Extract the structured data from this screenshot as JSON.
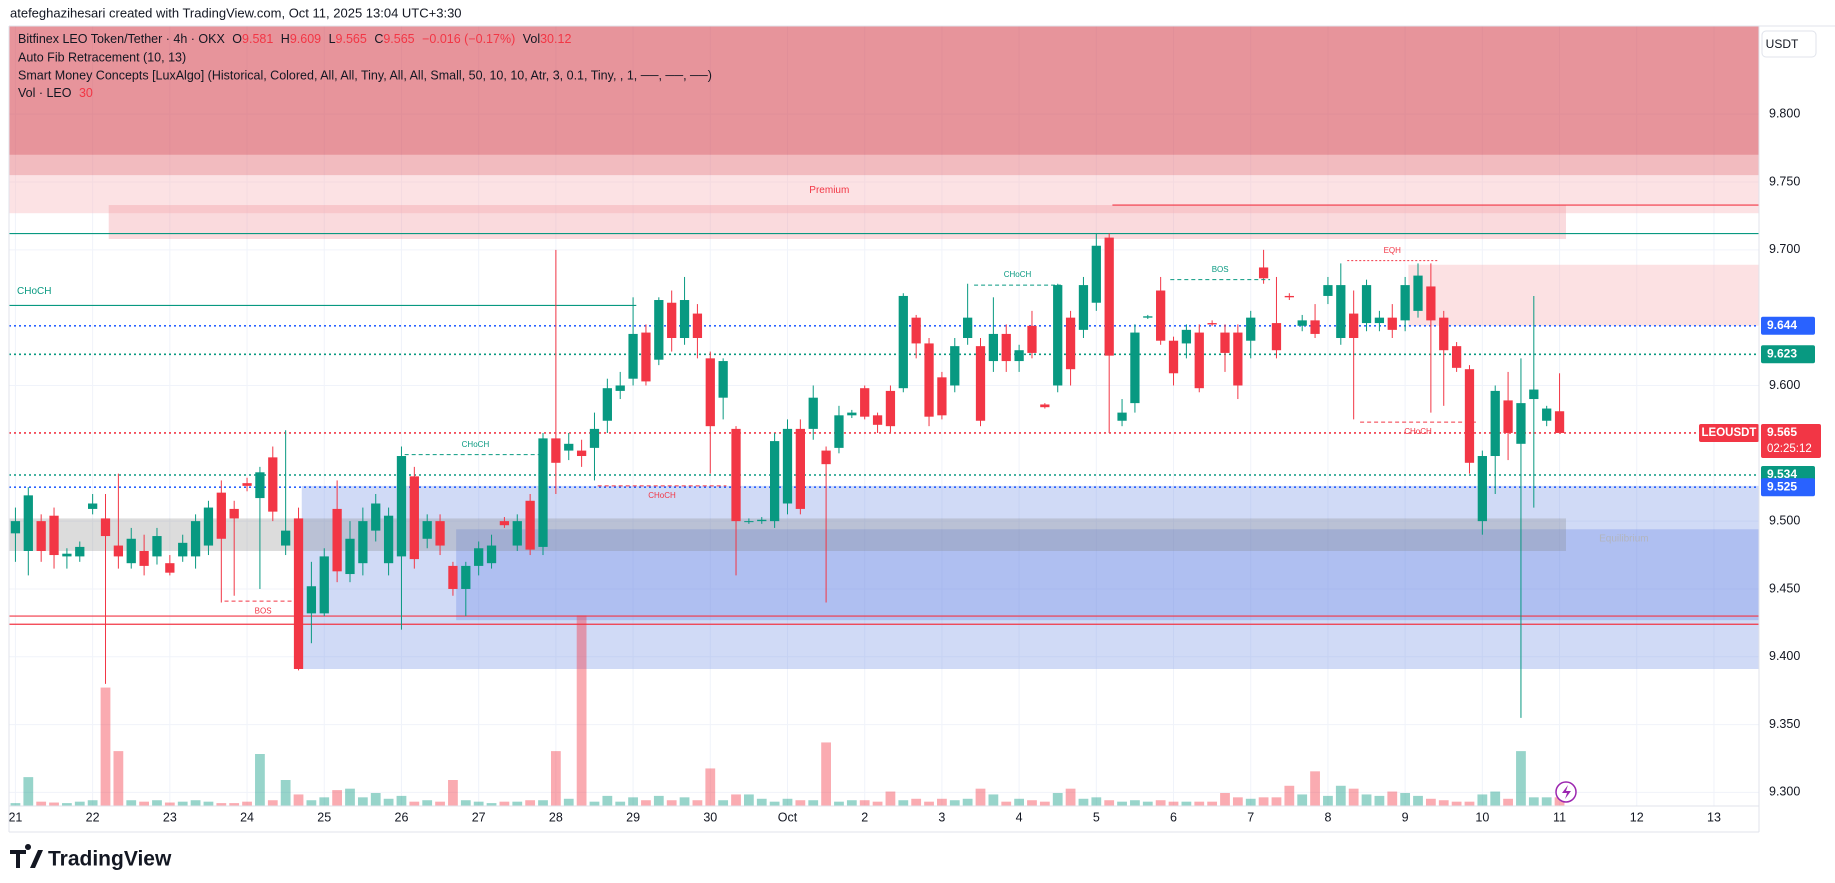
{
  "header": "atefeghazihesari created with TradingView.com, Oct 11, 2025 13:04 UTC+3:30",
  "footer": "TradingView",
  "legend": {
    "symbol": "Bitfinex LEO Token/Tether · 4h · OKX",
    "fields": [
      {
        "key": "O",
        "value": "9.581"
      },
      {
        "key": "H",
        "value": "9.609"
      },
      {
        "key": "L",
        "value": "9.565"
      },
      {
        "key": "C",
        "value": "9.565"
      }
    ],
    "change": "−0.016 (−0.17%)",
    "vol_key": "Vol",
    "vol_value": "30.12",
    "indicators": [
      "Auto Fib Retracement (10, 13)",
      "Smart Money Concepts [LuxAlgo] (Historical, Colored, All, All, Tiny, All, All, Small, 50, 10, 10, Atr, 3, 0.1, Tiny, , 1, ──, ──, ──)"
    ],
    "volume_key": "Vol · LEO",
    "volume_value": "30"
  },
  "chart_data": {
    "type": "candlestick",
    "currency": "USDT",
    "up_color": "#089981",
    "down_color": "#f23645",
    "grid": true,
    "xlim": [
      -2,
      542
    ],
    "ylim": [
      9.29,
      9.865
    ],
    "volume_ylim": [
      0,
      2700
    ],
    "xticks": [
      {
        "value": 0,
        "label": "21"
      },
      {
        "value": 24,
        "label": "22"
      },
      {
        "value": 48,
        "label": "23"
      },
      {
        "value": 72,
        "label": "24"
      },
      {
        "value": 96,
        "label": "25"
      },
      {
        "value": 120,
        "label": "26"
      },
      {
        "value": 144,
        "label": "27"
      },
      {
        "value": 168,
        "label": "28"
      },
      {
        "value": 192,
        "label": "29"
      },
      {
        "value": 216,
        "label": "30"
      },
      {
        "value": 240,
        "label": "Oct"
      },
      {
        "value": 264,
        "label": "2"
      },
      {
        "value": 288,
        "label": "3"
      },
      {
        "value": 312,
        "label": "4"
      },
      {
        "value": 336,
        "label": "5"
      },
      {
        "value": 360,
        "label": "6"
      },
      {
        "value": 384,
        "label": "7"
      },
      {
        "value": 408,
        "label": "8"
      },
      {
        "value": 432,
        "label": "9"
      },
      {
        "value": 456,
        "label": "10"
      },
      {
        "value": 480,
        "label": "11"
      },
      {
        "value": 504,
        "label": "12"
      },
      {
        "value": 528,
        "label": "13"
      }
    ],
    "yticks": [
      {
        "value": 9.3,
        "label": "9.300"
      },
      {
        "value": 9.35,
        "label": "9.350"
      },
      {
        "value": 9.4,
        "label": "9.400"
      },
      {
        "value": 9.45,
        "label": "9.450"
      },
      {
        "value": 9.5,
        "label": "9.500"
      },
      {
        "value": 9.6,
        "label": "9.600"
      },
      {
        "value": 9.7,
        "label": "9.700"
      },
      {
        "value": 9.75,
        "label": "9.750"
      },
      {
        "value": 9.8,
        "label": "9.800"
      }
    ],
    "x": [
      0,
      4,
      8,
      12,
      16,
      20,
      24,
      28,
      32,
      36,
      40,
      44,
      48,
      52,
      56,
      60,
      64,
      68,
      72,
      76,
      80,
      84,
      88,
      92,
      96,
      100,
      104,
      108,
      112,
      116,
      120,
      124,
      128,
      132,
      136,
      140,
      144,
      148,
      152,
      156,
      160,
      164,
      168,
      172,
      176,
      180,
      184,
      188,
      192,
      196,
      200,
      204,
      208,
      212,
      216,
      220,
      224,
      228,
      232,
      236,
      240,
      244,
      248,
      252,
      256,
      260,
      264,
      268,
      272,
      276,
      280,
      284,
      288,
      292,
      296,
      300,
      304,
      308,
      312,
      316,
      320,
      324,
      328,
      332,
      336,
      340,
      344,
      348,
      352,
      356,
      360,
      364,
      368,
      372,
      376,
      380,
      384,
      388,
      392,
      396,
      400,
      404,
      408,
      412,
      416,
      420,
      424,
      428,
      432,
      436,
      440,
      444,
      448,
      452,
      456,
      460,
      464,
      468,
      472,
      476,
      480
    ],
    "open": [
      9.491,
      9.478,
      9.5,
      9.504,
      9.474,
      9.474,
      9.509,
      9.502,
      9.482,
      9.469,
      9.478,
      9.474,
      9.469,
      9.474,
      9.474,
      9.482,
      9.521,
      9.509,
      9.528,
      9.517,
      9.547,
      9.482,
      9.502,
      9.432,
      9.432,
      9.509,
      9.461,
      9.469,
      9.493,
      9.469,
      9.474,
      9.533,
      9.487,
      9.5,
      9.467,
      9.45,
      9.467,
      9.469,
      9.5,
      9.482,
      9.515,
      9.481,
      9.561,
      9.552,
      9.552,
      9.554,
      9.574,
      9.596,
      9.605,
      9.639,
      9.619,
      9.661,
      9.635,
      9.653,
      9.62,
      9.591,
      9.568,
      9.5,
      9.5,
      9.5,
      9.513,
      9.568,
      9.568,
      9.552,
      9.554,
      9.578,
      9.598,
      9.578,
      9.596,
      9.598,
      9.65,
      9.631,
      9.606,
      9.6,
      9.635,
      9.629,
      9.618,
      9.638,
      9.618,
      9.644,
      9.586,
      9.6,
      9.65,
      9.641,
      9.661,
      9.709,
      9.574,
      9.587,
      9.65,
      9.67,
      9.633,
      9.631,
      9.639,
      9.646,
      9.639,
      9.639,
      9.633,
      9.687,
      9.646,
      9.666,
      9.644,
      9.648,
      9.666,
      9.635,
      9.653,
      9.646,
      9.646,
      9.65,
      9.648,
      9.655,
      9.673,
      9.65,
      9.629,
      9.612,
      9.5,
      9.548,
      9.589,
      9.557,
      9.59,
      9.574,
      9.581
    ],
    "high": [
      9.51,
      9.525,
      9.505,
      9.51,
      9.48,
      9.485,
      9.52,
      9.52,
      9.535,
      9.495,
      9.49,
      9.495,
      9.475,
      9.49,
      9.505,
      9.515,
      9.53,
      9.515,
      9.532,
      9.54,
      9.555,
      9.567,
      9.51,
      9.47,
      9.48,
      9.53,
      9.5,
      9.51,
      9.52,
      9.51,
      9.555,
      9.54,
      9.505,
      9.505,
      9.47,
      9.47,
      9.485,
      9.49,
      9.503,
      9.505,
      9.52,
      9.565,
      9.7,
      9.565,
      9.56,
      9.58,
      9.605,
      9.61,
      9.665,
      9.645,
      9.665,
      9.67,
      9.68,
      9.66,
      9.625,
      9.62,
      9.57,
      9.502,
      9.503,
      9.565,
      9.575,
      9.575,
      9.6,
      9.555,
      9.585,
      9.582,
      9.6,
      9.58,
      9.6,
      9.668,
      9.652,
      9.635,
      9.61,
      9.635,
      9.675,
      9.635,
      9.665,
      9.645,
      9.63,
      9.655,
      9.587,
      9.675,
      9.655,
      9.68,
      9.712,
      9.712,
      9.59,
      9.645,
      9.652,
      9.68,
      9.636,
      9.645,
      9.645,
      9.648,
      9.645,
      9.645,
      9.655,
      9.7,
      9.68,
      9.668,
      9.652,
      9.66,
      9.68,
      9.69,
      9.67,
      9.678,
      9.655,
      9.66,
      9.68,
      9.69,
      9.69,
      9.655,
      9.632,
      9.615,
      9.552,
      9.6,
      9.61,
      9.62,
      9.666,
      9.585,
      9.609
    ],
    "low": [
      9.47,
      9.46,
      9.47,
      9.465,
      9.465,
      9.47,
      9.505,
      9.38,
      9.465,
      9.465,
      9.46,
      9.468,
      9.46,
      9.47,
      9.465,
      9.475,
      9.44,
      9.445,
      9.522,
      9.45,
      9.5,
      9.475,
      9.39,
      9.41,
      9.43,
      9.455,
      9.455,
      9.46,
      9.485,
      9.46,
      9.42,
      9.465,
      9.48,
      9.475,
      9.445,
      9.43,
      9.46,
      9.465,
      9.495,
      9.478,
      9.475,
      9.475,
      9.52,
      9.545,
      9.54,
      9.53,
      9.565,
      9.59,
      9.6,
      9.6,
      9.615,
      9.625,
      9.63,
      9.62,
      9.535,
      9.575,
      9.46,
      9.498,
      9.498,
      9.495,
      9.505,
      9.505,
      9.56,
      9.44,
      9.55,
      9.576,
      9.575,
      9.565,
      9.565,
      9.595,
      9.62,
      9.57,
      9.575,
      9.595,
      9.63,
      9.57,
      9.61,
      9.61,
      9.61,
      9.62,
      9.583,
      9.595,
      9.6,
      9.635,
      9.655,
      9.565,
      9.57,
      9.58,
      9.649,
      9.63,
      9.6,
      9.62,
      9.595,
      9.644,
      9.61,
      9.59,
      9.62,
      9.675,
      9.62,
      9.663,
      9.64,
      9.635,
      9.66,
      9.63,
      9.575,
      9.64,
      9.64,
      9.635,
      9.64,
      9.65,
      9.58,
      9.585,
      9.61,
      9.535,
      9.49,
      9.52,
      9.545,
      9.355,
      9.51,
      9.57,
      9.565
    ],
    "close": [
      9.5,
      9.519,
      9.478,
      9.475,
      9.476,
      9.481,
      9.513,
      9.489,
      9.474,
      9.487,
      9.467,
      9.489,
      9.462,
      9.484,
      9.5,
      9.51,
      9.487,
      9.502,
      9.526,
      9.536,
      9.507,
      9.493,
      9.391,
      9.452,
      9.474,
      9.463,
      9.487,
      9.5,
      9.513,
      9.504,
      9.548,
      9.472,
      9.5,
      9.482,
      9.45,
      9.467,
      9.48,
      9.482,
      9.497,
      9.5,
      9.479,
      9.561,
      9.543,
      9.557,
      9.548,
      9.568,
      9.598,
      9.6,
      9.638,
      9.603,
      9.663,
      9.635,
      9.663,
      9.635,
      9.57,
      9.618,
      9.5,
      9.5,
      9.501,
      9.559,
      9.568,
      9.509,
      9.591,
      9.542,
      9.578,
      9.58,
      9.577,
      9.571,
      9.57,
      9.666,
      9.631,
      9.577,
      9.578,
      9.629,
      9.65,
      9.574,
      9.638,
      9.618,
      9.626,
      9.624,
      9.584,
      9.674,
      9.612,
      9.674,
      9.703,
      9.622,
      9.58,
      9.639,
      9.651,
      9.633,
      9.609,
      9.641,
      9.598,
      9.645,
      9.624,
      9.6,
      9.65,
      9.679,
      9.626,
      9.665,
      9.648,
      9.638,
      9.674,
      9.674,
      9.635,
      9.674,
      9.65,
      9.641,
      9.674,
      9.681,
      9.648,
      9.626,
      9.613,
      9.543,
      9.548,
      9.596,
      9.565,
      9.587,
      9.597,
      9.583,
      9.565
    ],
    "volume": [
      10,
      100,
      15,
      12,
      10,
      15,
      20,
      410,
      190,
      20,
      15,
      20,
      12,
      15,
      20,
      15,
      10,
      10,
      15,
      180,
      20,
      90,
      40,
      20,
      30,
      55,
      60,
      30,
      45,
      25,
      35,
      15,
      20,
      15,
      90,
      20,
      15,
      10,
      15,
      15,
      20,
      20,
      190,
      25,
      660,
      15,
      35,
      15,
      30,
      20,
      35,
      20,
      30,
      20,
      130,
      20,
      40,
      40,
      25,
      15,
      25,
      20,
      20,
      220,
      15,
      20,
      20,
      15,
      50,
      20,
      25,
      15,
      25,
      20,
      25,
      60,
      40,
      15,
      25,
      20,
      15,
      45,
      60,
      25,
      30,
      20,
      15,
      20,
      15,
      20,
      15,
      15,
      15,
      15,
      45,
      30,
      25,
      30,
      30,
      70,
      40,
      120,
      35,
      70,
      60,
      40,
      35,
      50,
      45,
      35,
      25,
      20,
      15,
      15,
      40,
      50,
      25,
      190,
      30,
      30,
      30.12
    ],
    "zones": [
      {
        "top": 9.865,
        "bottom": 9.77,
        "color": "rgba(214,70,82,0.58)"
      },
      {
        "top": 9.77,
        "bottom": 9.755,
        "color": "rgba(230,120,128,0.5)"
      },
      {
        "top": 9.755,
        "bottom": 9.727,
        "color": "rgba(248,190,195,0.45)"
      },
      {
        "top": 9.733,
        "bottom": 9.708,
        "from": 29,
        "to": 482,
        "color": "rgba(240,150,158,0.35)"
      },
      {
        "top": 9.689,
        "bottom": 9.644,
        "from": 433,
        "color": "rgba(248,180,186,0.4)"
      },
      {
        "top": 9.526,
        "bottom": 9.391,
        "from": 89,
        "color": "rgba(120,150,230,0.35)"
      },
      {
        "top": 9.494,
        "bottom": 9.427,
        "from": 137,
        "color": "rgba(100,130,230,0.3)"
      },
      {
        "top": 9.502,
        "bottom": 9.478,
        "to": 482,
        "color": "rgba(130,130,130,0.28)"
      }
    ],
    "zone_labels": [
      {
        "text": "Premium",
        "x": 253,
        "price": 9.744,
        "color": "#f23645"
      },
      {
        "text": "Equilibrium",
        "x": 500,
        "price": 9.487,
        "color": "#b2b5be"
      }
    ],
    "levels": [
      {
        "price": 9.712,
        "color": "#089981",
        "style": "solid"
      },
      {
        "price": 9.733,
        "color": "#f23645",
        "style": "solid",
        "from": 341
      },
      {
        "price": 9.659,
        "color": "#089981",
        "style": "solid",
        "to": 193
      },
      {
        "price": 9.644,
        "color": "#2962ff",
        "style": "dotted",
        "label": "9.644"
      },
      {
        "price": 9.623,
        "color": "#089981",
        "style": "dotted",
        "label": "9.623"
      },
      {
        "price": 9.565,
        "color": "#f23645",
        "style": "dotted"
      },
      {
        "price": 9.534,
        "color": "#089981",
        "style": "dotted",
        "label": "9.534"
      },
      {
        "price": 9.525,
        "color": "#2962ff",
        "style": "dotted",
        "label": "9.525"
      },
      {
        "price": 9.43,
        "color": "#f23645",
        "style": "solid"
      },
      {
        "price": 9.424,
        "color": "#f23645",
        "style": "solid"
      }
    ],
    "structures": [
      {
        "text": "CHoCH",
        "price": 9.659,
        "from": -2,
        "to": -2,
        "color": "#089981",
        "side": "above"
      },
      {
        "text": "CHoCH",
        "price": 9.674,
        "from": 298,
        "to": 325,
        "color": "#089981",
        "side": "above"
      },
      {
        "text": "BOS",
        "price": 9.678,
        "from": 359,
        "to": 390,
        "color": "#089981",
        "side": "above"
      },
      {
        "text": "EQH",
        "price": 9.692,
        "from": 414,
        "to": 442,
        "color": "#f23645",
        "side": "above"
      },
      {
        "text": "CHoCH",
        "price": 9.573,
        "from": 418,
        "to": 454,
        "color": "#f23645",
        "side": "below"
      },
      {
        "text": "CHoCH",
        "price": 9.549,
        "from": 121,
        "to": 165,
        "color": "#089981",
        "side": "above"
      },
      {
        "text": "CHoCH",
        "price": 9.526,
        "from": 181,
        "to": 221,
        "color": "#f23645",
        "side": "below"
      },
      {
        "text": "BOS",
        "price": 9.441,
        "from": 65,
        "to": 89,
        "color": "#f23645",
        "side": "below"
      }
    ],
    "last_price": {
      "symbol": "LEOUSDT",
      "value": 9.565,
      "label": "9.565",
      "countdown": "02:25:12"
    }
  }
}
